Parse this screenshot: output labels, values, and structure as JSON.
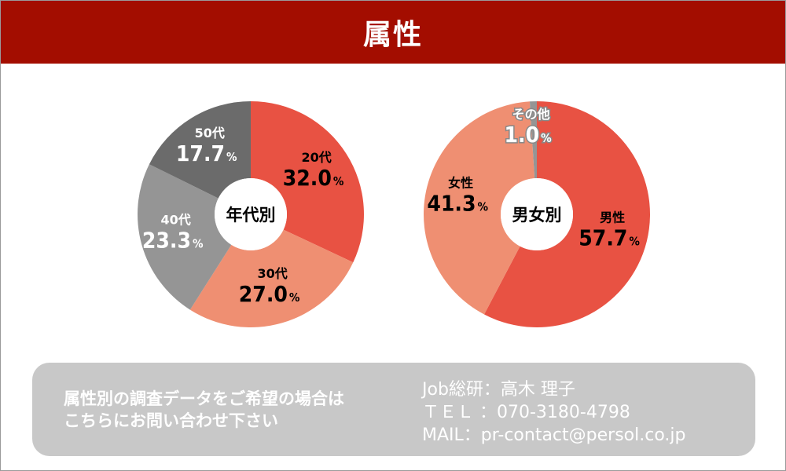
{
  "header": {
    "title": "属性"
  },
  "chart_data": [
    {
      "type": "pie",
      "center_label": "年代別",
      "categories": [
        "20代",
        "30代",
        "40代",
        "50代"
      ],
      "values": [
        32.0,
        27.0,
        23.3,
        17.7
      ],
      "value_labels": [
        "32.0",
        "27.0",
        "23.3",
        "17.7"
      ],
      "unit": "%",
      "colors": [
        "#e85243",
        "#ef8f72",
        "#959595",
        "#6b6b6b"
      ],
      "label_colors": [
        "#000000",
        "#000000",
        "#ffffff",
        "#ffffff"
      ]
    },
    {
      "type": "pie",
      "center_label": "男女別",
      "categories": [
        "男性",
        "女性",
        "その他"
      ],
      "values": [
        57.7,
        41.3,
        1.0
      ],
      "value_labels": [
        "57.7",
        "41.3",
        "1.0"
      ],
      "unit": "%",
      "colors": [
        "#e85243",
        "#ef8f72",
        "#959595"
      ],
      "label_colors": [
        "#000000",
        "#000000",
        "#ffffff"
      ]
    }
  ],
  "info": {
    "request_line1": "属性別の調査データをご希望の場合は",
    "request_line2": "こちらにお問い合わせ下さい",
    "contact_line1": "Job総研：高木 理子",
    "contact_line2": "ＴＥＬ ：070-3180-4798",
    "contact_line3": "MAIL：pr-contact@persol.co.jp"
  }
}
